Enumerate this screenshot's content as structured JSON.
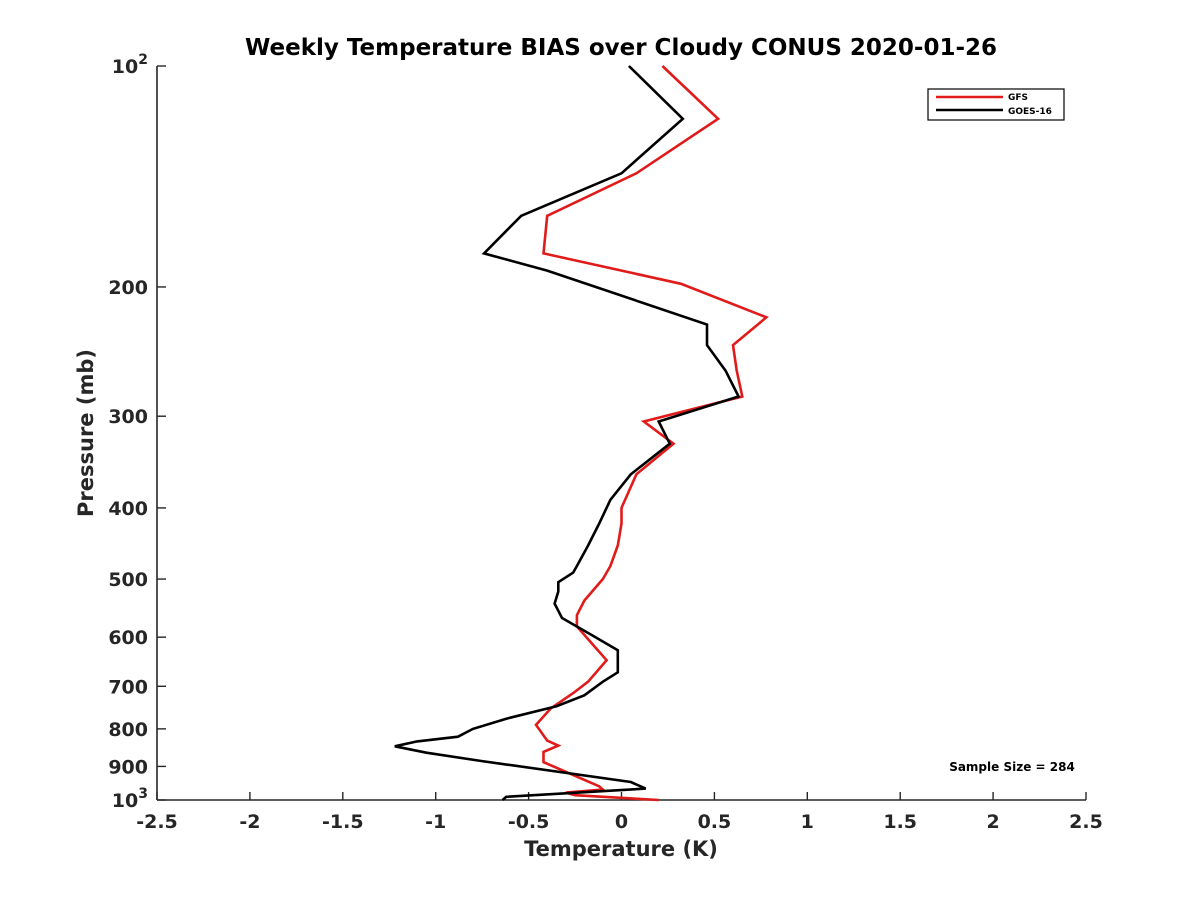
{
  "chart_data": {
    "type": "line",
    "title": "Weekly Temperature BIAS over Cloudy CONUS 2020-01-26",
    "xlabel": "Temperature (K)",
    "ylabel": "Pressure (mb)",
    "xlim": [
      -2.5,
      2.5
    ],
    "ylim": [
      100,
      1000
    ],
    "y_scale": "log",
    "y_reversed": true,
    "x_ticks": [
      "-2.5",
      "-2",
      "-1.5",
      "-1",
      "-0.5",
      "0",
      "0.5",
      "1",
      "1.5",
      "2",
      "2.5"
    ],
    "y_ticks": [
      {
        "value": 100,
        "base": "10",
        "exp": "2"
      },
      {
        "value": 200,
        "label": "200"
      },
      {
        "value": 300,
        "label": "300"
      },
      {
        "value": 400,
        "label": "400"
      },
      {
        "value": 500,
        "label": "500"
      },
      {
        "value": 600,
        "label": "600"
      },
      {
        "value": 700,
        "label": "700"
      },
      {
        "value": 800,
        "label": "800"
      },
      {
        "value": 900,
        "label": "900"
      },
      {
        "value": 1000,
        "base": "10",
        "exp": "3"
      }
    ],
    "legend_position": "top-right",
    "grid": false,
    "annotation": "Sample Size = 284",
    "series": [
      {
        "name": "GFS",
        "color": "#e11a1a",
        "points": [
          [
            0.22,
            100
          ],
          [
            0.52,
            118
          ],
          [
            0.08,
            140
          ],
          [
            -0.4,
            160
          ],
          [
            -0.42,
            180
          ],
          [
            0.32,
            198
          ],
          [
            0.78,
            220
          ],
          [
            0.6,
            240
          ],
          [
            0.62,
            260
          ],
          [
            0.65,
            282
          ],
          [
            0.12,
            305
          ],
          [
            0.28,
            327
          ],
          [
            0.08,
            360
          ],
          [
            0.0,
            400
          ],
          [
            0.0,
            420
          ],
          [
            -0.02,
            450
          ],
          [
            -0.06,
            480
          ],
          [
            -0.1,
            500
          ],
          [
            -0.2,
            535
          ],
          [
            -0.24,
            560
          ],
          [
            -0.24,
            580
          ],
          [
            -0.14,
            620
          ],
          [
            -0.08,
            645
          ],
          [
            -0.18,
            690
          ],
          [
            -0.26,
            715
          ],
          [
            -0.38,
            750
          ],
          [
            -0.46,
            790
          ],
          [
            -0.4,
            830
          ],
          [
            -0.34,
            843
          ],
          [
            -0.42,
            860
          ],
          [
            -0.42,
            888
          ],
          [
            -0.12,
            958
          ],
          [
            -0.1,
            968
          ],
          [
            -0.3,
            977
          ],
          [
            -0.25,
            985
          ],
          [
            0.2,
            1000
          ]
        ]
      },
      {
        "name": "GOES-16",
        "color": "#000000",
        "points": [
          [
            0.04,
            100
          ],
          [
            0.33,
            118
          ],
          [
            0.0,
            140
          ],
          [
            -0.54,
            160
          ],
          [
            -0.74,
            180
          ],
          [
            -0.4,
            190
          ],
          [
            0.46,
            225
          ],
          [
            0.46,
            240
          ],
          [
            0.56,
            260
          ],
          [
            0.63,
            282
          ],
          [
            0.2,
            305
          ],
          [
            0.26,
            327
          ],
          [
            0.05,
            360
          ],
          [
            -0.06,
            390
          ],
          [
            -0.12,
            420
          ],
          [
            -0.18,
            450
          ],
          [
            -0.24,
            480
          ],
          [
            -0.26,
            490
          ],
          [
            -0.34,
            505
          ],
          [
            -0.34,
            520
          ],
          [
            -0.36,
            540
          ],
          [
            -0.32,
            565
          ],
          [
            -0.14,
            600
          ],
          [
            -0.02,
            625
          ],
          [
            -0.02,
            670
          ],
          [
            -0.1,
            690
          ],
          [
            -0.2,
            720
          ],
          [
            -0.35,
            745
          ],
          [
            -0.62,
            775
          ],
          [
            -0.8,
            800
          ],
          [
            -0.88,
            820
          ],
          [
            -1.1,
            832
          ],
          [
            -1.22,
            845
          ],
          [
            -1.05,
            862
          ],
          [
            -0.75,
            885
          ],
          [
            0.05,
            945
          ],
          [
            0.13,
            965
          ],
          [
            -0.62,
            990
          ],
          [
            -0.64,
            1000
          ]
        ]
      }
    ]
  }
}
